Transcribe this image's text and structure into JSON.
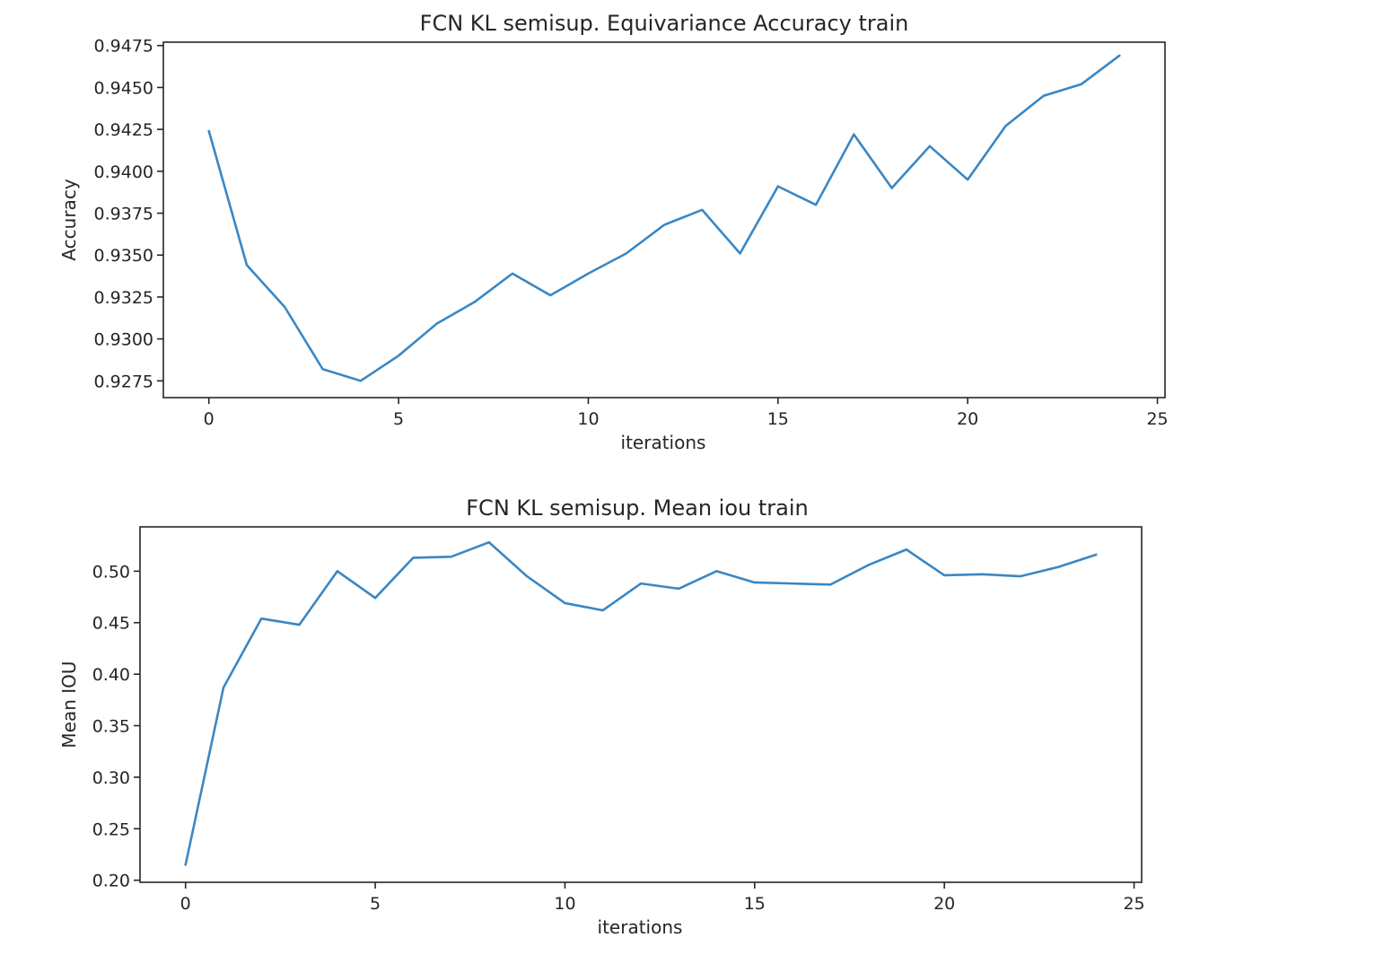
{
  "chart_data": [
    {
      "type": "line",
      "title": "FCN KL semisup. Equivariance Accuracy train",
      "xlabel": "iterations",
      "ylabel": "Accuracy",
      "xlim": [
        -1.2,
        25.2
      ],
      "ylim": [
        0.9265,
        0.9477
      ],
      "xticks": [
        0,
        5,
        10,
        15,
        20,
        25
      ],
      "xtick_labels": [
        "0",
        "5",
        "10",
        "15",
        "20",
        "25"
      ],
      "yticks": [
        0.9275,
        0.93,
        0.9325,
        0.935,
        0.9375,
        0.94,
        0.9425,
        0.945,
        0.9475
      ],
      "ytick_labels": [
        "0.9275",
        "0.9300",
        "0.9325",
        "0.9350",
        "0.9375",
        "0.9400",
        "0.9425",
        "0.9450",
        "0.9475"
      ],
      "color": "#3a87c4",
      "series": [
        {
          "name": "accuracy",
          "x": [
            0,
            1,
            2,
            3,
            4,
            5,
            6,
            7,
            8,
            9,
            10,
            11,
            12,
            13,
            14,
            15,
            16,
            17,
            18,
            19,
            20,
            21,
            22,
            23,
            24
          ],
          "values": [
            0.9424,
            0.9344,
            0.9319,
            0.9282,
            0.9275,
            0.929,
            0.9309,
            0.9322,
            0.9339,
            0.9326,
            0.9339,
            0.9351,
            0.9368,
            0.9377,
            0.9351,
            0.9391,
            0.938,
            0.9422,
            0.939,
            0.9415,
            0.9395,
            0.9427,
            0.9445,
            0.9452,
            0.9469
          ]
        }
      ]
    },
    {
      "type": "line",
      "title": "FCN KL semisup. Mean iou train",
      "xlabel": "iterations",
      "ylabel": "Mean IOU",
      "xlim": [
        -1.2,
        25.2
      ],
      "ylim": [
        0.198,
        0.543
      ],
      "xticks": [
        0,
        5,
        10,
        15,
        20,
        25
      ],
      "xtick_labels": [
        "0",
        "5",
        "10",
        "15",
        "20",
        "25"
      ],
      "yticks": [
        0.2,
        0.25,
        0.3,
        0.35,
        0.4,
        0.45,
        0.5
      ],
      "ytick_labels": [
        "0.20",
        "0.25",
        "0.30",
        "0.35",
        "0.40",
        "0.45",
        "0.50"
      ],
      "color": "#3a87c4",
      "series": [
        {
          "name": "mean_iou",
          "x": [
            0,
            1,
            2,
            3,
            4,
            5,
            6,
            7,
            8,
            9,
            10,
            11,
            12,
            13,
            14,
            15,
            16,
            17,
            18,
            19,
            20,
            21,
            22,
            23,
            24
          ],
          "values": [
            0.215,
            0.387,
            0.454,
            0.448,
            0.5,
            0.474,
            0.513,
            0.514,
            0.528,
            0.495,
            0.469,
            0.462,
            0.488,
            0.483,
            0.5,
            0.489,
            0.488,
            0.487,
            0.506,
            0.521,
            0.496,
            0.497,
            0.495,
            0.504,
            0.516
          ]
        }
      ]
    }
  ]
}
